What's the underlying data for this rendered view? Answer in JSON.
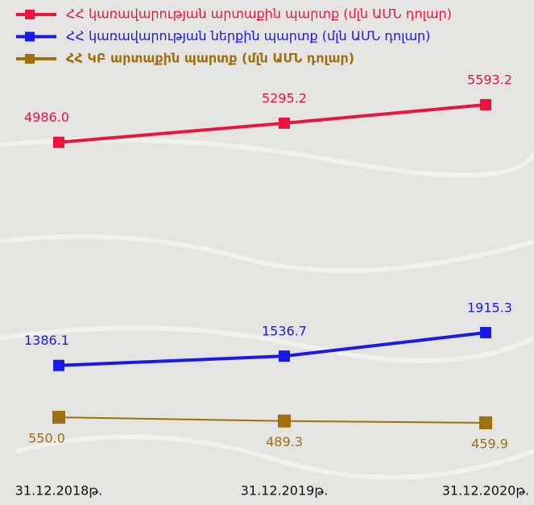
{
  "chart_data": {
    "type": "line",
    "categories": [
      "31.12.2018թ.",
      "31.12.2019թ.",
      "31.12.2020թ."
    ],
    "series": [
      {
        "name": "ՀՀ ԿԲ արտաքին պարտք (մլն ԱՄՆ դոլար)",
        "color": "#a0700f",
        "values": [
          550.0,
          489.3,
          459.9
        ],
        "value_labels": [
          "550.0",
          "489.3",
          "459.9"
        ]
      },
      {
        "name": "ՀՀ կառավարության ներքին պարտք (մլն ԱՄՆ դոլար)",
        "color": "#1a1ae6",
        "values": [
          1386.1,
          1536.7,
          1915.3
        ],
        "value_labels": [
          "1386.1",
          "1536.7",
          "1915.3"
        ]
      },
      {
        "name": "ՀՀ կառավարության արտաքին պարտք (մլն ԱՄՆ դոլար)",
        "color": "#e8163c",
        "values": [
          4986.0,
          5295.2,
          5593.2
        ],
        "value_labels": [
          "4986.0",
          "5295.2",
          "5593.2"
        ]
      }
    ]
  }
}
